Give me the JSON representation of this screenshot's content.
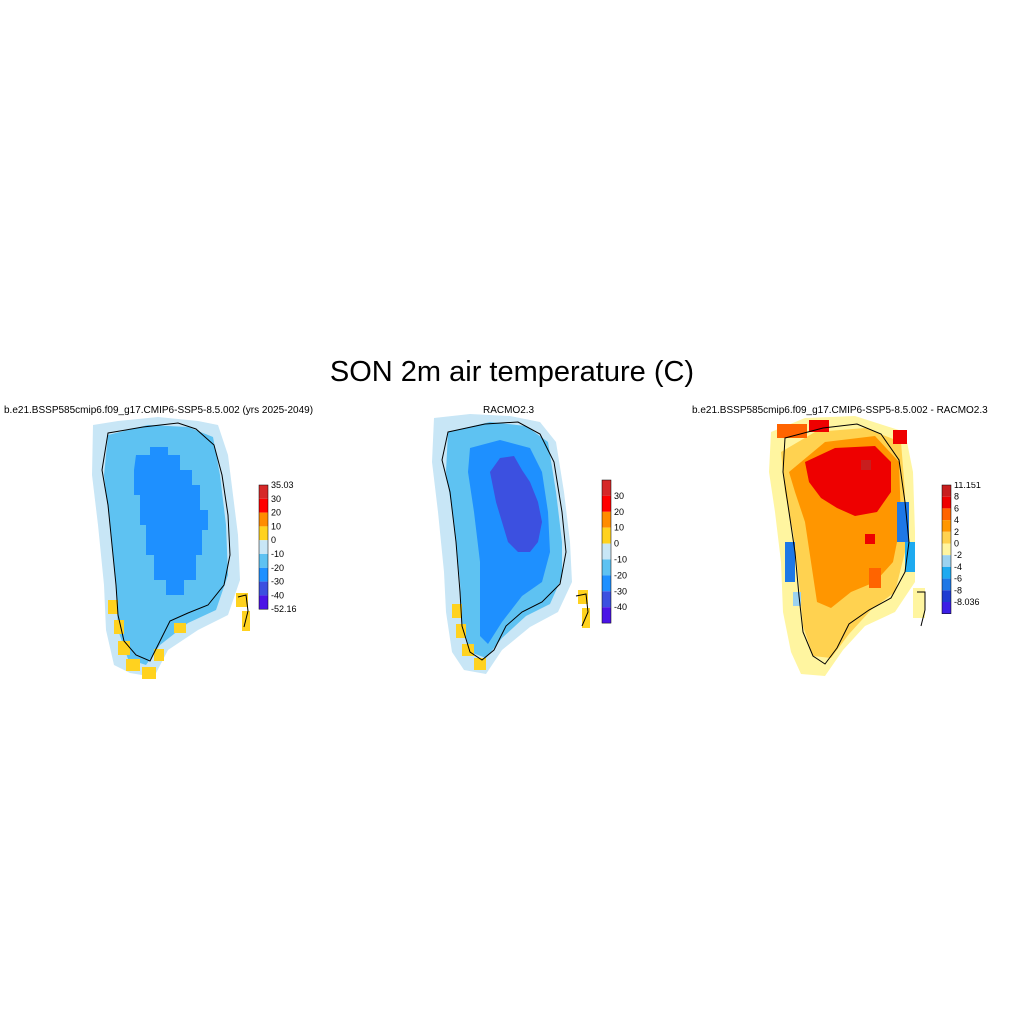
{
  "title": "SON 2m air temperature (C)",
  "panels": [
    {
      "id": "model",
      "title": "b.e21.BSSP585cmip6.f09_g17.CMIP6-SSP5-8.5.002 (yrs 2025-2049)",
      "colorbar": {
        "colors": [
          "#d62828",
          "#ff0000",
          "#ff8c00",
          "#ffd21f",
          "#c8e6f6",
          "#5ec2f2",
          "#1e90ff",
          "#3c50e0",
          "#4b14e6"
        ],
        "labels": [
          "35.03",
          "30",
          "20",
          "10",
          "0",
          "-10",
          "-20",
          "-30",
          "-40",
          "-52.16"
        ]
      }
    },
    {
      "id": "racmo",
      "title": "RACMO2.3",
      "colorbar": {
        "colors": [
          "#d62828",
          "#ff0000",
          "#ff8c00",
          "#ffd21f",
          "#c8e6f6",
          "#5ec2f2",
          "#1e90ff",
          "#3c50e0",
          "#4b14e6"
        ],
        "labels": [
          "30",
          "20",
          "10",
          "0",
          "-10",
          "-20",
          "-30",
          "-40"
        ]
      }
    },
    {
      "id": "diff",
      "title": "b.e21.BSSP585cmip6.f09_g17.CMIP6-SSP5-8.5.002 - RACMO2.3",
      "colorbar": {
        "colors": [
          "#c81e1e",
          "#ee0000",
          "#ff6400",
          "#ff9600",
          "#ffd250",
          "#fff5a0",
          "#9bd2f0",
          "#1eaaf0",
          "#1e78e6",
          "#1e3cd2",
          "#3c1ee6"
        ],
        "labels": [
          "11.151",
          "8",
          "6",
          "4",
          "2",
          "0",
          "-2",
          "-4",
          "-6",
          "-8",
          "-8.036"
        ]
      }
    }
  ]
}
